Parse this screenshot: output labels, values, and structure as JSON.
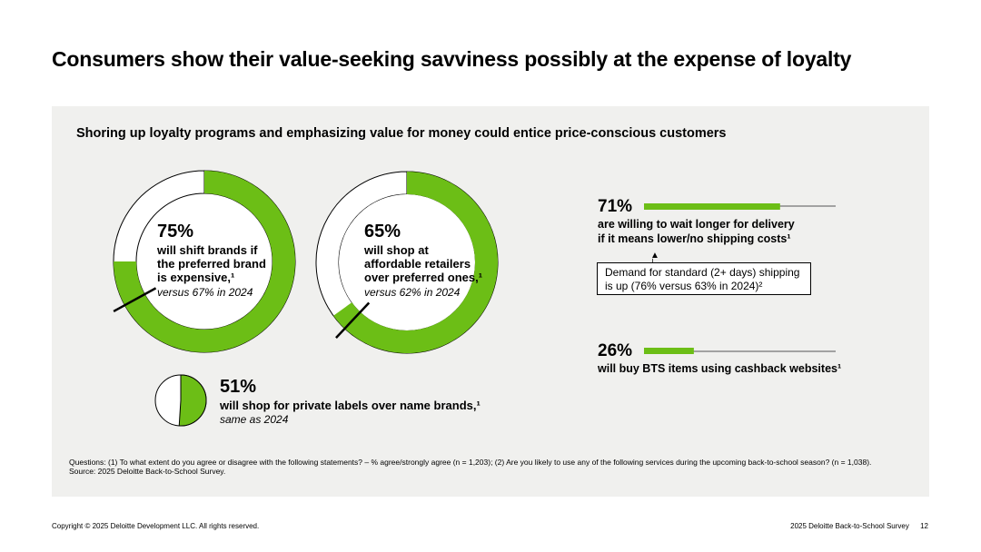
{
  "title": "Consumers show their value-seeking savviness possibly at the expense of loyalty",
  "subtitle": "Shoring up loyalty programs and emphasizing value for money could entice price-conscious customers",
  "colors": {
    "accent": "#6cbe16",
    "panel": "#f0f0ee",
    "text": "#000000"
  },
  "chart_data": [
    {
      "type": "pie",
      "title": "will shift brands if the preferred brand is expensive,¹",
      "value_label": "75%",
      "values": [
        75,
        25
      ],
      "prior_value": 67,
      "note": "versus 67% in 2024"
    },
    {
      "type": "pie",
      "title": "will shop at affordable retailers over preferred ones,¹",
      "value_label": "65%",
      "values": [
        65,
        35
      ],
      "prior_value": 62,
      "note": "versus 62% in 2024"
    },
    {
      "type": "pie",
      "title": "will shop for private labels over name brands,¹",
      "value_label": "51%",
      "values": [
        51,
        49
      ],
      "note": "same as 2024"
    },
    {
      "type": "bar",
      "title": "are willing to wait longer for delivery if it means lower/no shipping costs¹",
      "value_label": "71%",
      "values": [
        71
      ],
      "xlim": [
        0,
        100
      ]
    },
    {
      "type": "bar",
      "title": "will buy BTS items using cashback websites¹",
      "value_label": "26%",
      "values": [
        26
      ],
      "xlim": [
        0,
        100
      ]
    }
  ],
  "ring1": {
    "pct": "75%",
    "label_lines": [
      "will shift brands if",
      "the preferred brand",
      "is expensive,¹"
    ],
    "note": "versus 67% in 2024"
  },
  "ring2": {
    "pct": "65%",
    "label_lines": [
      "will shop at",
      "affordable retailers",
      "over preferred ones,¹"
    ],
    "note": "versus 62% in 2024"
  },
  "pie": {
    "pct": "51%",
    "label": "will shop for private labels over name brands,¹",
    "note": "same as 2024"
  },
  "stat1": {
    "pct": "71%",
    "line1": "are willing to wait longer for delivery",
    "line2": "if it means lower/no shipping costs¹"
  },
  "callout": {
    "line1": "Demand for standard (2+ days) shipping",
    "line2": "is up (76% versus 63% in 2024)²"
  },
  "stat2": {
    "pct": "26%",
    "line1": "will buy BTS items using cashback websites¹"
  },
  "footnote": {
    "questions": "Questions: (1) To what extent do you agree or disagree with the following statements? – % agree/strongly agree (n = 1,203); (2) Are you likely to use any of the following services during the upcoming back-to-school season? (n = 1,038).",
    "source": "Source: 2025 Deloitte Back-to-School Survey."
  },
  "footer": {
    "copyright": "Copyright © 2025 Deloitte Development LLC. All rights reserved.",
    "report": "2025 Deloitte Back-to-School Survey",
    "page": "12"
  }
}
